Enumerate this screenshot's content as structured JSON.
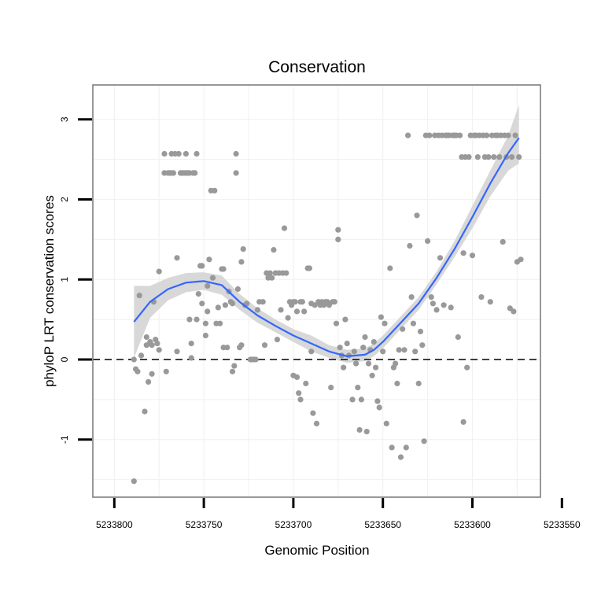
{
  "chart_data": {
    "type": "scatter",
    "title": "Conservation",
    "xlabel": "Genomic Position",
    "ylabel": "phyloP LRT conservation scores",
    "x_reversed": true,
    "xlim": [
      5233812,
      5233562
    ],
    "ylim": [
      -1.72,
      3.43
    ],
    "x_ticks": [
      5233800,
      5233750,
      5233700,
      5233650,
      5233600,
      5233550
    ],
    "x_tick_labels": [
      "5233800",
      "5233750",
      "5233700",
      "5233650",
      "5233600",
      "5233550"
    ],
    "y_ticks": [
      -1,
      0,
      1,
      2,
      3
    ],
    "y_tick_labels": [
      "-1",
      "0",
      "1",
      "2",
      "3"
    ],
    "reference_line": {
      "y": 0,
      "style": "dashed"
    },
    "colors": {
      "points": "#999999",
      "smooth": "#3366ff",
      "ribbon": "#d6d6d6",
      "frame": "#7f7f7f",
      "grid": "#f2f2f2"
    },
    "series": [
      {
        "name": "phyloP scores",
        "points": [
          [
            5233789,
            0
          ],
          [
            5233789,
            -1.52
          ],
          [
            5233788,
            -0.12
          ],
          [
            5233787,
            -0.15
          ],
          [
            5233786,
            0.8
          ],
          [
            5233785,
            0.05
          ],
          [
            5233783,
            -0.65
          ],
          [
            5233782,
            0.28
          ],
          [
            5233782,
            0.18
          ],
          [
            5233781,
            -0.28
          ],
          [
            5233780,
            0.22
          ],
          [
            5233779,
            -0.18
          ],
          [
            5233779,
            0.18
          ],
          [
            5233778,
            0.72
          ],
          [
            5233777,
            0.25
          ],
          [
            5233776,
            0.2
          ],
          [
            5233775,
            1.1
          ],
          [
            5233775,
            0.12
          ],
          [
            5233772,
            2.57
          ],
          [
            5233772,
            2.33
          ],
          [
            5233771,
            -0.15
          ],
          [
            5233770,
            2.33
          ],
          [
            5233769,
            2.33
          ],
          [
            5233768,
            2.57
          ],
          [
            5233768,
            2.33
          ],
          [
            5233767,
            2.33
          ],
          [
            5233766,
            2.57
          ],
          [
            5233765,
            1.27
          ],
          [
            5233765,
            0.1
          ],
          [
            5233764,
            2.57
          ],
          [
            5233763,
            2.33
          ],
          [
            5233762,
            2.33
          ],
          [
            5233761,
            2.33
          ],
          [
            5233760,
            2.57
          ],
          [
            5233760,
            2.33
          ],
          [
            5233759,
            2.33
          ],
          [
            5233758,
            2.33
          ],
          [
            5233758,
            0.5
          ],
          [
            5233757,
            0.2
          ],
          [
            5233757,
            0.02
          ],
          [
            5233756,
            2.33
          ],
          [
            5233755,
            2.33
          ],
          [
            5233754,
            2.57
          ],
          [
            5233754,
            0.5
          ],
          [
            5233753,
            0.82
          ],
          [
            5233752,
            1.17
          ],
          [
            5233751,
            0.7
          ],
          [
            5233751,
            1.17
          ],
          [
            5233749,
            0.3
          ],
          [
            5233749,
            0.45
          ],
          [
            5233748,
            0.92
          ],
          [
            5233748,
            0.6
          ],
          [
            5233747,
            1.25
          ],
          [
            5233746,
            2.11
          ],
          [
            5233745,
            1.02
          ],
          [
            5233744,
            2.11
          ],
          [
            5233743,
            0.45
          ],
          [
            5233742,
            0.65
          ],
          [
            5233741,
            0.45
          ],
          [
            5233740,
            1.13
          ],
          [
            5233739,
            0.15
          ],
          [
            5233739,
            1.13
          ],
          [
            5233738,
            0.68
          ],
          [
            5233737,
            0.15
          ],
          [
            5233736,
            0.85
          ],
          [
            5233735,
            0.72
          ],
          [
            5233734,
            -0.15
          ],
          [
            5233734,
            0.7
          ],
          [
            5233733,
            -0.08
          ],
          [
            5233732,
            2.57
          ],
          [
            5233732,
            2.33
          ],
          [
            5233731,
            0.88
          ],
          [
            5233730,
            0.15
          ],
          [
            5233729,
            0.18
          ],
          [
            5233729,
            1.22
          ],
          [
            5233728,
            1.38
          ],
          [
            5233727,
            0.68
          ],
          [
            5233726,
            0.7
          ],
          [
            5233724,
            0
          ],
          [
            5233723,
            0
          ],
          [
            5233722,
            0
          ],
          [
            5233721,
            0
          ],
          [
            5233720,
            0.62
          ],
          [
            5233719,
            0.72
          ],
          [
            5233717,
            0.72
          ],
          [
            5233716,
            0.18
          ],
          [
            5233715,
            1.08
          ],
          [
            5233714,
            1.02
          ],
          [
            5233713,
            1.08
          ],
          [
            5233712,
            1.02
          ],
          [
            5233711,
            1.37
          ],
          [
            5233710,
            1.08
          ],
          [
            5233709,
            0.25
          ],
          [
            5233708,
            1.08
          ],
          [
            5233707,
            0.62
          ],
          [
            5233706,
            1.08
          ],
          [
            5233705,
            1.64
          ],
          [
            5233704,
            1.08
          ],
          [
            5233703,
            0.52
          ],
          [
            5233702,
            0.72
          ],
          [
            5233701,
            0.68
          ],
          [
            5233700,
            -0.2
          ],
          [
            5233700,
            0.72
          ],
          [
            5233699,
            0.72
          ],
          [
            5233698,
            -0.22
          ],
          [
            5233698,
            0.6
          ],
          [
            5233697,
            -0.42
          ],
          [
            5233696,
            -0.5
          ],
          [
            5233696,
            0.72
          ],
          [
            5233695,
            0.72
          ],
          [
            5233694,
            0.6
          ],
          [
            5233693,
            -0.3
          ],
          [
            5233692,
            1.14
          ],
          [
            5233691,
            1.14
          ],
          [
            5233690,
            0.7
          ],
          [
            5233690,
            0.1
          ],
          [
            5233689,
            -0.67
          ],
          [
            5233688,
            0.68
          ],
          [
            5233687,
            -0.8
          ],
          [
            5233686,
            0.72
          ],
          [
            5233685,
            0.68
          ],
          [
            5233684,
            0.72
          ],
          [
            5233683,
            0.68
          ],
          [
            5233682,
            0.72
          ],
          [
            5233681,
            0.72
          ],
          [
            5233680,
            0.68
          ],
          [
            5233679,
            -0.35
          ],
          [
            5233678,
            0.72
          ],
          [
            5233677,
            0.72
          ],
          [
            5233676,
            0.45
          ],
          [
            5233675,
            1.62
          ],
          [
            5233675,
            1.5
          ],
          [
            5233674,
            0.15
          ],
          [
            5233673,
            0.05
          ],
          [
            5233672,
            -0.1
          ],
          [
            5233671,
            0.5
          ],
          [
            5233670,
            0.2
          ],
          [
            5233669,
            0.05
          ],
          [
            5233667,
            -0.5
          ],
          [
            5233666,
            0.1
          ],
          [
            5233665,
            -0.05
          ],
          [
            5233664,
            -0.35
          ],
          [
            5233663,
            -0.88
          ],
          [
            5233662,
            -0.5
          ],
          [
            5233661,
            0.15
          ],
          [
            5233660,
            0.28
          ],
          [
            5233659,
            -0.9
          ],
          [
            5233658,
            -0.05
          ],
          [
            5233657,
            0.12
          ],
          [
            5233656,
            -0.2
          ],
          [
            5233655,
            0.22
          ],
          [
            5233654,
            -0.1
          ],
          [
            5233653,
            -0.52
          ],
          [
            5233652,
            -0.6
          ],
          [
            5233651,
            0.53
          ],
          [
            5233650,
            0.1
          ],
          [
            5233649,
            0.45
          ],
          [
            5233648,
            -0.8
          ],
          [
            5233646,
            1.14
          ],
          [
            5233645,
            -1.1
          ],
          [
            5233644,
            -0.1
          ],
          [
            5233643,
            -0.05
          ],
          [
            5233642,
            -0.3
          ],
          [
            5233641,
            0.12
          ],
          [
            5233640,
            -1.22
          ],
          [
            5233639,
            0.38
          ],
          [
            5233638,
            0.12
          ],
          [
            5233637,
            -1.1
          ],
          [
            5233636,
            2.8
          ],
          [
            5233635,
            1.42
          ],
          [
            5233634,
            0.78
          ],
          [
            5233633,
            0.45
          ],
          [
            5233632,
            0.1
          ],
          [
            5233631,
            1.8
          ],
          [
            5233630,
            -0.3
          ],
          [
            5233629,
            0.35
          ],
          [
            5233628,
            0.18
          ],
          [
            5233627,
            -1.02
          ],
          [
            5233626,
            2.8
          ],
          [
            5233625,
            1.48
          ],
          [
            5233624,
            2.8
          ],
          [
            5233623,
            0.78
          ],
          [
            5233622,
            0.7
          ],
          [
            5233621,
            2.8
          ],
          [
            5233620,
            0.62
          ],
          [
            5233619,
            2.8
          ],
          [
            5233618,
            1.27
          ],
          [
            5233617,
            2.8
          ],
          [
            5233616,
            0.68
          ],
          [
            5233615,
            2.8
          ],
          [
            5233614,
            2.8
          ],
          [
            5233613,
            2.8
          ],
          [
            5233612,
            0.65
          ],
          [
            5233611,
            2.8
          ],
          [
            5233610,
            2.8
          ],
          [
            5233609,
            2.8
          ],
          [
            5233608,
            0.28
          ],
          [
            5233607,
            2.8
          ],
          [
            5233606,
            2.53
          ],
          [
            5233605,
            -0.78
          ],
          [
            5233605,
            1.33
          ],
          [
            5233604,
            2.53
          ],
          [
            5233603,
            -0.1
          ],
          [
            5233602,
            2.53
          ],
          [
            5233601,
            2.8
          ],
          [
            5233600,
            1.3
          ],
          [
            5233599,
            2.8
          ],
          [
            5233598,
            2.8
          ],
          [
            5233597,
            2.53
          ],
          [
            5233596,
            2.8
          ],
          [
            5233595,
            0.78
          ],
          [
            5233594,
            2.8
          ],
          [
            5233593,
            2.53
          ],
          [
            5233592,
            2.8
          ],
          [
            5233591,
            2.53
          ],
          [
            5233590,
            0.72
          ],
          [
            5233589,
            2.8
          ],
          [
            5233588,
            2.53
          ],
          [
            5233587,
            2.8
          ],
          [
            5233586,
            2.8
          ],
          [
            5233585,
            2.53
          ],
          [
            5233584,
            2.8
          ],
          [
            5233583,
            1.47
          ],
          [
            5233582,
            2.8
          ],
          [
            5233581,
            2.53
          ],
          [
            5233580,
            2.8
          ],
          [
            5233579,
            0.64
          ],
          [
            5233578,
            2.53
          ],
          [
            5233577,
            0.6
          ],
          [
            5233576,
            2.8
          ],
          [
            5233575,
            1.22
          ],
          [
            5233574,
            2.53
          ],
          [
            5233573,
            1.25
          ]
        ]
      }
    ],
    "smooth": {
      "name": "loess fit",
      "x": [
        5233789,
        5233780,
        5233770,
        5233760,
        5233750,
        5233740,
        5233730,
        5233720,
        5233710,
        5233700,
        5233690,
        5233680,
        5233670,
        5233660,
        5233655,
        5233650,
        5233640,
        5233630,
        5233620,
        5233610,
        5233600,
        5233590,
        5233580,
        5233574
      ],
      "y": [
        0.47,
        0.72,
        0.88,
        0.96,
        0.98,
        0.93,
        0.72,
        0.55,
        0.42,
        0.3,
        0.2,
        0.1,
        0.04,
        0.06,
        0.12,
        0.22,
        0.46,
        0.7,
        1.02,
        1.38,
        1.78,
        2.2,
        2.58,
        2.77
      ],
      "ribbon_lower": [
        0.02,
        0.52,
        0.74,
        0.84,
        0.87,
        0.81,
        0.62,
        0.46,
        0.34,
        0.22,
        0.1,
        0.02,
        -0.04,
        -0.02,
        0.04,
        0.14,
        0.38,
        0.62,
        0.94,
        1.28,
        1.64,
        2.04,
        2.36,
        2.45
      ],
      "ribbon_upper": [
        0.92,
        0.92,
        1.02,
        1.08,
        1.09,
        1.05,
        0.82,
        0.64,
        0.5,
        0.38,
        0.3,
        0.18,
        0.12,
        0.14,
        0.2,
        0.3,
        0.54,
        0.78,
        1.1,
        1.48,
        1.92,
        2.36,
        2.8,
        3.18
      ]
    }
  }
}
